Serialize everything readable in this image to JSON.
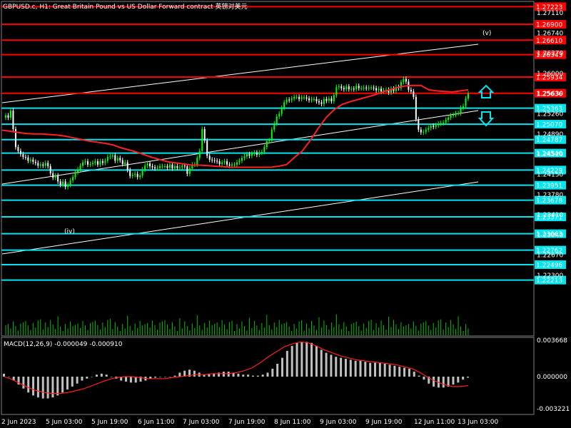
{
  "window": {
    "title": "GBPUSD.c, H1:  Great Britain Pound vs US Dollar Forward contract 英镑对美元"
  },
  "colors": {
    "background": "#000000",
    "bull_candle": "#00ff00",
    "bear_candle": "#ffffff",
    "resistance": "#ff0000",
    "support": "#00e5ee",
    "ma": "#ff2020",
    "channel": "#ffffff",
    "volume": "#00c000",
    "macd_hist": "#c0c0c0",
    "macd_signal": "#ff2020",
    "arrow": "#00e5ee",
    "price_tick": "#ffffff"
  },
  "chart_data": [
    {
      "type": "candlestick",
      "symbol": "GBPUSD.c",
      "timeframe": "H1",
      "ylim": [
        1.221,
        1.2735
      ],
      "x_ticks": [
        "2 Jun 2023",
        "5 Jun 03:00",
        "5 Jun 19:00",
        "6 Jun 11:00",
        "7 Jun 03:00",
        "7 Jun 19:00",
        "8 Jun 11:00",
        "9 Jun 03:00",
        "9 Jun 19:00",
        "12 Jun 11:00",
        "13 Jun 03:00"
      ],
      "y_ticks": [
        "1.27110",
        "1.26740",
        "1.26370",
        "1.26000",
        "1.25630",
        "1.25260",
        "1.24890",
        "1.24520",
        "1.24150",
        "1.23780",
        "1.23410",
        "1.23040",
        "1.22670",
        "1.22300"
      ],
      "close_series": [
        1.2523,
        1.2519,
        1.2532,
        1.2498,
        1.2465,
        1.2458,
        1.2452,
        1.2447,
        1.2446,
        1.244,
        1.2442,
        1.2438,
        1.2436,
        1.2431,
        1.2433,
        1.2431,
        1.2436,
        1.243,
        1.2417,
        1.2409,
        1.2413,
        1.2402,
        1.2396,
        1.2402,
        1.2392,
        1.2396,
        1.2404,
        1.241,
        1.2419,
        1.2424,
        1.2431,
        1.2437,
        1.2439,
        1.2433,
        1.2434,
        1.2436,
        1.2439,
        1.2433,
        1.2439,
        1.2436,
        1.244,
        1.2447,
        1.2448,
        1.245,
        1.244,
        1.2445,
        1.2441,
        1.2434,
        1.2437,
        1.2423,
        1.2412,
        1.2414,
        1.2416,
        1.241,
        1.2413,
        1.2424,
        1.2431,
        1.2435,
        1.243,
        1.2428,
        1.2426,
        1.2427,
        1.243,
        1.243,
        1.243,
        1.2427,
        1.2433,
        1.2426,
        1.243,
        1.2427,
        1.2428,
        1.2431,
        1.243,
        1.2416,
        1.2426,
        1.2433,
        1.2433,
        1.2445,
        1.2458,
        1.2498,
        1.2477,
        1.2449,
        1.2442,
        1.2441,
        1.244,
        1.2439,
        1.2434,
        1.2437,
        1.2439,
        1.2433,
        1.2431,
        1.2433,
        1.2433,
        1.2437,
        1.244,
        1.2445,
        1.2448,
        1.2452,
        1.2449,
        1.2453,
        1.2455,
        1.2451,
        1.2455,
        1.2456,
        1.2465,
        1.2476,
        1.2477,
        1.2497,
        1.2508,
        1.2521,
        1.2526,
        1.2537,
        1.2547,
        1.2552,
        1.2551,
        1.2554,
        1.2557,
        1.2557,
        1.2553,
        1.2556,
        1.2556,
        1.2554,
        1.2551,
        1.2553,
        1.2553,
        1.2549,
        1.2547,
        1.2544,
        1.2553,
        1.255,
        1.2554,
        1.2549,
        1.256,
        1.2575,
        1.2576,
        1.2573,
        1.2571,
        1.2576,
        1.2571,
        1.2572,
        1.2571,
        1.2577,
        1.2573,
        1.2573,
        1.2574,
        1.2573,
        1.2574,
        1.2574,
        1.2573,
        1.2569,
        1.2572,
        1.2567,
        1.2569,
        1.257,
        1.2565,
        1.2572,
        1.2568,
        1.2575,
        1.2573,
        1.2584,
        1.259,
        1.2585,
        1.257,
        1.2567,
        1.2557,
        1.2516,
        1.2497,
        1.2492,
        1.2493,
        1.2497,
        1.25,
        1.2504,
        1.2502,
        1.2505,
        1.2508,
        1.2509,
        1.251,
        1.2515,
        1.2519,
        1.2523,
        1.2524,
        1.2527,
        1.2527,
        1.2537,
        1.254,
        1.2554,
        1.2563
      ],
      "moving_average": [
        1.2496,
        1.2494,
        1.2492,
        1.249,
        1.2489,
        1.2489,
        1.2488,
        1.2487,
        1.2485,
        1.2482,
        1.2479,
        1.2476,
        1.2474,
        1.2472,
        1.2469,
        1.2464,
        1.246,
        1.2456,
        1.2451,
        1.2446,
        1.2442,
        1.2438,
        1.2436,
        1.2434,
        1.2432,
        1.2432,
        1.2431,
        1.243,
        1.2429,
        1.2428,
        1.2428,
        1.2428,
        1.2428,
        1.2428,
        1.2428,
        1.243,
        1.2433,
        1.2446,
        1.2458,
        1.2477,
        1.2499,
        1.2519,
        1.2533,
        1.2543,
        1.2548,
        1.2552,
        1.2556,
        1.256,
        1.2565,
        1.257,
        1.2574,
        1.2577,
        1.2578,
        1.2578,
        1.257,
        1.2568,
        1.2567,
        1.2566,
        1.2568,
        1.257
      ],
      "resistance_lines": [
        "1.27223",
        "1.26900",
        "1.26610",
        "1.26343",
        "1.25934",
        "1.25636"
      ],
      "support_lines": [
        "1.25363",
        "1.25070",
        "1.24787",
        "1.24540",
        "1.24229",
        "1.23951",
        "1.23678",
        "1.23371",
        "1.23063",
        "1.22762",
        "1.22496",
        "1.22213"
      ],
      "annotations": [
        "(v)",
        "(iv)"
      ]
    },
    {
      "type": "bar",
      "name": "MACD(12,26,9) -0.000049 -0.000910",
      "ylim": [
        -0.003221,
        0.003668
      ],
      "y_ticks": [
        "0.003668",
        "0.000000",
        "-0.003221"
      ],
      "histogram": [
        0.0003,
        0.0,
        -0.0004,
        -0.0008,
        -0.0012,
        -0.0016,
        -0.0019,
        -0.0021,
        -0.0022,
        -0.0022,
        -0.0021,
        -0.0019,
        -0.0016,
        -0.0013,
        -0.001,
        -0.0007,
        -0.0004,
        -0.0002,
        0.0,
        0.0002,
        0.0003,
        0.0002,
        0.0,
        -0.0002,
        -0.0004,
        -0.0005,
        -0.0006,
        -0.0006,
        -0.0005,
        -0.0004,
        -0.0002,
        -0.0001,
        0.0,
        0.0,
        0.0,
        0.0001,
        0.0004,
        0.0006,
        0.0007,
        0.0006,
        0.0004,
        0.0002,
        0.0003,
        0.0003,
        0.0004,
        0.0005,
        0.0005,
        0.0004,
        0.0003,
        0.0002,
        0.0002,
        0.0001,
        0.0001,
        0.0002,
        0.0004,
        0.0008,
        0.0013,
        0.0019,
        0.0026,
        0.0031,
        0.0034,
        0.0035,
        0.0035,
        0.0034,
        0.0031,
        0.0027,
        0.0024,
        0.0022,
        0.002,
        0.0019,
        0.0018,
        0.0017,
        0.0016,
        0.0016,
        0.0015,
        0.0014,
        0.0014,
        0.0014,
        0.0013,
        0.0012,
        0.0011,
        0.001,
        0.0009,
        0.0008,
        0.0005,
        0.0001,
        -0.0003,
        -0.0007,
        -0.001,
        -0.0011,
        -0.0011,
        -0.001,
        -0.0008,
        -0.0006,
        -0.0003,
        -0.0001
      ],
      "signal": [
        0.0,
        -0.0003,
        -0.0007,
        -0.0011,
        -0.0014,
        -0.0016,
        -0.0017,
        -0.0017,
        -0.0016,
        -0.0014,
        -0.0012,
        -0.0009,
        -0.0006,
        -0.0003,
        -0.0001,
        0.0,
        0.0,
        -0.0001,
        -0.0002,
        -0.0002,
        -0.0002,
        -0.0001,
        0.0,
        0.0001,
        0.0002,
        0.0002,
        0.0003,
        0.0003,
        0.0003,
        0.0004,
        0.0006,
        0.0009,
        0.0014,
        0.002,
        0.0025,
        0.003,
        0.0033,
        0.0035,
        0.0034,
        0.0031,
        0.0027,
        0.0024,
        0.0021,
        0.0019,
        0.0017,
        0.0016,
        0.0015,
        0.0014,
        0.0013,
        0.0012,
        0.001,
        0.0008,
        0.0004,
        -0.0001,
        -0.0005,
        -0.0008,
        -0.001,
        -0.001,
        -0.0009
      ]
    }
  ]
}
